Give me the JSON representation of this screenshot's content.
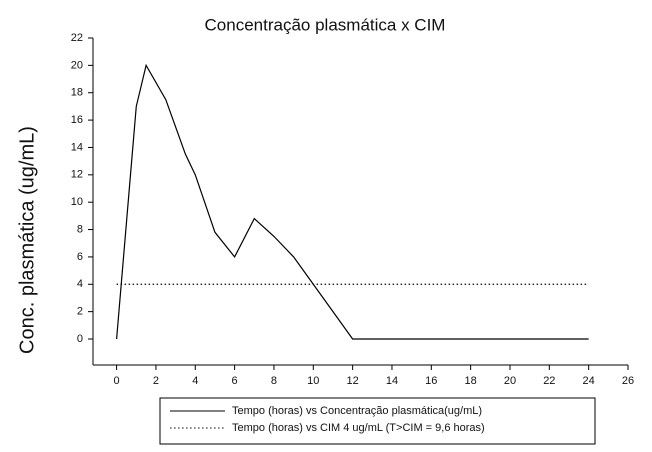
{
  "chart_data": {
    "type": "line",
    "title": "Concentração plasmática x CIM",
    "y_label": "Conc. plasmática (ug/mL)",
    "xlim": [
      -1.2,
      26
    ],
    "ylim": [
      -1.9,
      22
    ],
    "xticks": [
      0,
      2,
      4,
      6,
      8,
      10,
      12,
      14,
      16,
      18,
      20,
      22,
      24,
      26
    ],
    "yticks": [
      0,
      2,
      4,
      6,
      8,
      10,
      12,
      14,
      16,
      18,
      20,
      22
    ],
    "grid": false,
    "legend": "bottom",
    "series": [
      {
        "name": "Tempo (horas) vs Concentração plasmática(ug/mL)",
        "color": "#000000",
        "style": "solid",
        "x": [
          0,
          1,
          1.5,
          2.5,
          3.5,
          4,
          5,
          6,
          7,
          8,
          9,
          10,
          12,
          24
        ],
        "values": [
          0,
          17,
          20,
          17.5,
          13.5,
          12,
          7.8,
          6,
          8.8,
          7.5,
          6,
          4,
          0,
          0
        ]
      },
      {
        "name": "Tempo (horas) vs CIM 4 ug/mL (T>CIM = 9,6 horas)",
        "color": "#000000",
        "style": "dotted",
        "x": [
          0,
          24
        ],
        "values": [
          4,
          4
        ]
      }
    ]
  }
}
